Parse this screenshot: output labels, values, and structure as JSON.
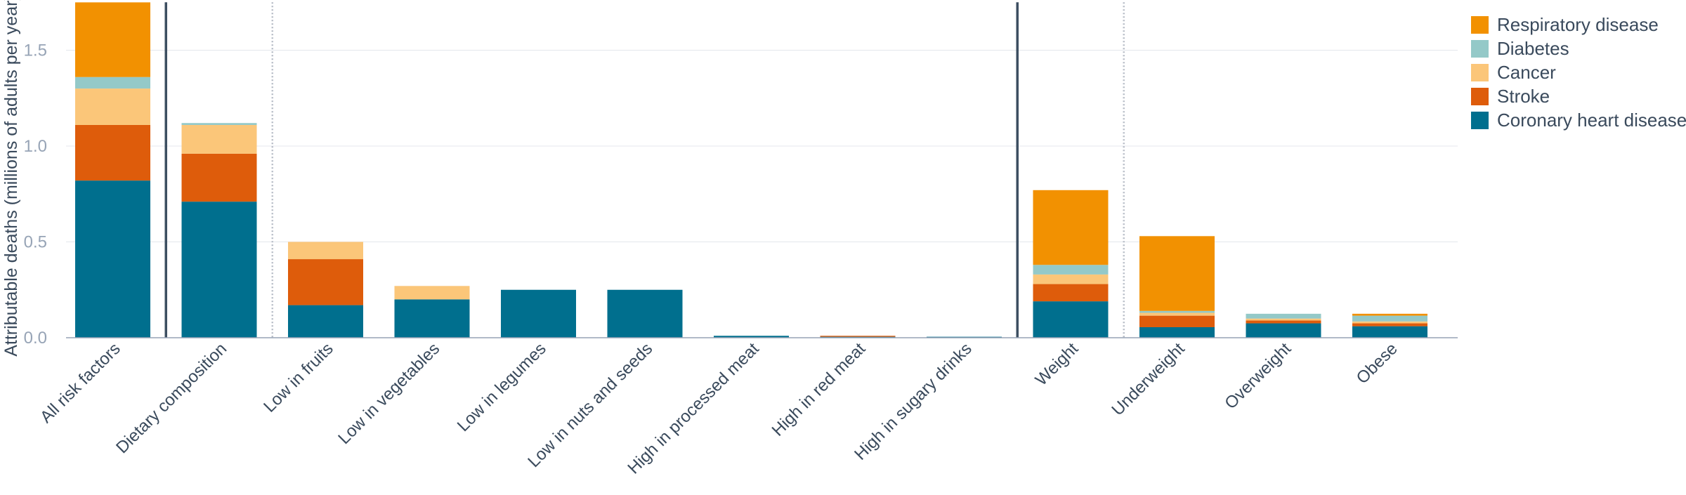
{
  "chart_data": {
    "type": "bar",
    "stacked": true,
    "title": "",
    "xlabel": "",
    "ylabel": "Attributable deaths (millions of adults per year)",
    "ylim": [
      0,
      1.75
    ],
    "yticks": [
      "0.0",
      "0.5",
      "1.0",
      "1.5"
    ],
    "grid": "horizontal",
    "legend_position": "top-right",
    "categories": [
      "All risk factors",
      "Dietary composition",
      "Low in fruits",
      "Low in vegetables",
      "Low in legumes",
      "Low in nuts and seeds",
      "High in processed meat",
      "High in red meat",
      "High in sugary drinks",
      "Weight",
      "Underweight",
      "Overweight",
      "Obese"
    ],
    "series": [
      {
        "name": "Coronary heart disease",
        "color": "#006f8e",
        "values": [
          0.82,
          0.71,
          0.17,
          0.2,
          0.25,
          0.25,
          0.01,
          0.005,
          0.005,
          0.19,
          0.055,
          0.075,
          0.06
        ]
      },
      {
        "name": "Stroke",
        "color": "#de5c0b",
        "values": [
          0.29,
          0.25,
          0.24,
          0.0,
          0.0,
          0.0,
          0.0,
          0.005,
          0.0,
          0.09,
          0.06,
          0.015,
          0.015
        ]
      },
      {
        "name": "Cancer",
        "color": "#fbc679",
        "values": [
          0.19,
          0.15,
          0.09,
          0.07,
          0.0,
          0.0,
          0.0,
          0.0,
          0.0,
          0.05,
          0.015,
          0.01,
          0.01
        ]
      },
      {
        "name": "Diabetes",
        "color": "#94c9c8",
        "values": [
          0.06,
          0.01,
          0.0,
          0.0,
          0.0,
          0.0,
          0.0,
          0.0,
          0.0,
          0.05,
          0.01,
          0.025,
          0.03
        ]
      },
      {
        "name": "Respiratory disease",
        "color": "#f29101",
        "values": [
          0.39,
          0.0,
          0.0,
          0.0,
          0.0,
          0.0,
          0.0,
          0.0,
          0.0,
          0.39,
          0.39,
          0.0,
          0.01
        ]
      }
    ],
    "legend_order": [
      "Respiratory disease",
      "Diabetes",
      "Cancer",
      "Stroke",
      "Coronary heart disease"
    ],
    "separators": [
      {
        "after": "All risk factors",
        "style": "solid"
      },
      {
        "after": "Dietary composition",
        "style": "dotted"
      },
      {
        "after": "High in sugary drinks",
        "style": "solid"
      },
      {
        "after": "Weight",
        "style": "dotted"
      }
    ],
    "colors": {
      "grid": "#e4e7ec",
      "axis": "#97a4b6",
      "separator_solid": "#3d4f61",
      "separator_dotted": "#b6bcc6",
      "text": "#3a4a5c"
    }
  }
}
